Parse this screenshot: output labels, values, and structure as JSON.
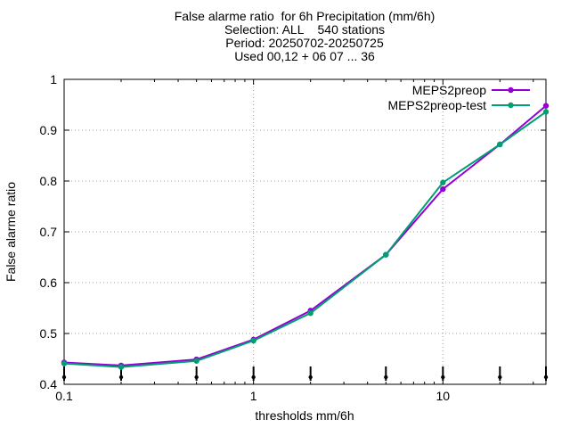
{
  "chart_data": {
    "type": "line",
    "title_lines": [
      "False alarme ratio  for 6h Precipitation (mm/6h)",
      "Selection: ALL    540 stations",
      "Period: 20250702-20250725",
      "Used 00,12 + 06 07 ... 36"
    ],
    "xlabel": "thresholds mm/6h",
    "ylabel": "False alarme ratio",
    "x_scale": "log",
    "xlim": [
      0.1,
      35
    ],
    "ylim": [
      0.4,
      1.0
    ],
    "x_ticks": [
      0.1,
      1,
      10
    ],
    "x_tick_labels": [
      "0.1",
      "1",
      "10"
    ],
    "y_ticks": [
      0.4,
      0.5,
      0.6,
      0.7,
      0.8,
      0.9,
      1.0
    ],
    "y_tick_labels": [
      "0.4",
      "0.5",
      "0.6",
      "0.7",
      "0.8",
      "0.9",
      "1"
    ],
    "grid": true,
    "legend_position": "top-right",
    "x": [
      0.1,
      0.2,
      0.5,
      1,
      2,
      5,
      10,
      20,
      35
    ],
    "series": [
      {
        "name": "MEPS2preop",
        "color": "#9400d3",
        "values": [
          0.443,
          0.437,
          0.449,
          0.488,
          0.545,
          0.655,
          0.784,
          0.872,
          0.948
        ]
      },
      {
        "name": "MEPS2preop-test",
        "color": "#009e73",
        "values": [
          0.441,
          0.434,
          0.446,
          0.486,
          0.54,
          0.655,
          0.797,
          0.872,
          0.936
        ]
      }
    ]
  }
}
